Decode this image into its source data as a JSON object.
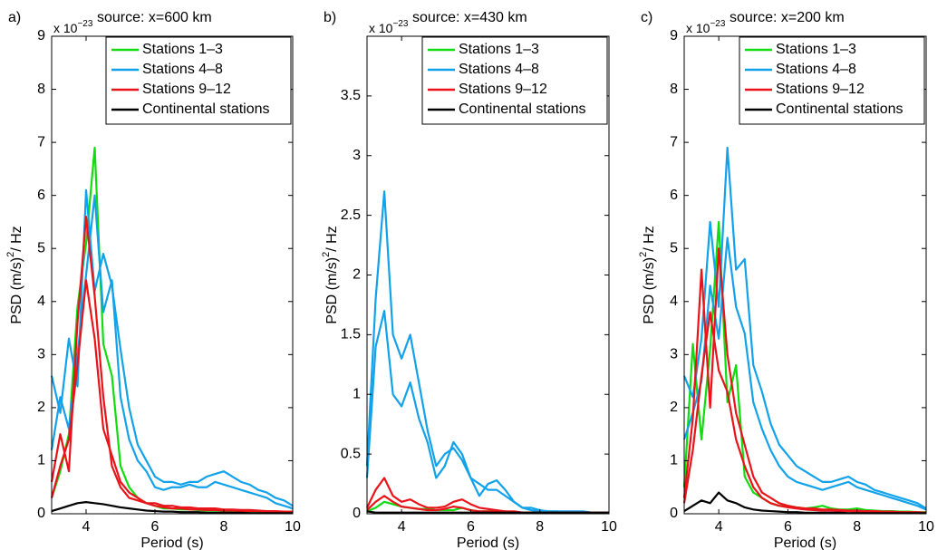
{
  "chart_data": [
    {
      "type": "line",
      "panel_label": "a)",
      "subtitle": "source: x=600 km",
      "scale_label": "x 10",
      "scale_exponent": "−23",
      "xlabel": "Period (s)",
      "ylabel": "PSD (m/s)",
      "ylabel_sup": "2",
      "ylabel_tail": "/ Hz",
      "legend": "upper right",
      "x": [
        3,
        3.25,
        3.5,
        3.75,
        4,
        4.25,
        4.5,
        4.75,
        5,
        5.25,
        5.5,
        5.75,
        6,
        6.25,
        6.5,
        6.75,
        7,
        7.25,
        7.5,
        7.75,
        8,
        8.25,
        8.5,
        8.75,
        9,
        9.25,
        9.5,
        9.75,
        10
      ],
      "xlim": [
        3,
        10
      ],
      "xticks": [
        4,
        6,
        8,
        10
      ],
      "ylim": [
        0,
        9
      ],
      "yticks": [
        0,
        1,
        2,
        3,
        4,
        5,
        6,
        7,
        8,
        9
      ],
      "series": [
        {
          "name": "Stations 1–3",
          "color": "#10dc10",
          "lines": [
            [
              0.3,
              0.8,
              1.5,
              3.9,
              5.1,
              6.9,
              3.2,
              2.6,
              0.9,
              0.5,
              0.3,
              0.2,
              0.15,
              0.1,
              0.1,
              0.08,
              0.08,
              0.07,
              0.06,
              0.06,
              0.05,
              0.05,
              0.04,
              0.04,
              0.03,
              0.03,
              0.03,
              0.02,
              0.02
            ]
          ]
        },
        {
          "name": "Stations 4–8",
          "color": "#12a2ea",
          "lines": [
            [
              2.6,
              1.9,
              3.3,
              2.4,
              6.1,
              4.2,
              4.9,
              4.3,
              3.1,
              2.0,
              1.3,
              1.0,
              0.7,
              0.6,
              0.6,
              0.55,
              0.6,
              0.6,
              0.7,
              0.75,
              0.8,
              0.7,
              0.6,
              0.55,
              0.45,
              0.4,
              0.3,
              0.25,
              0.15
            ],
            [
              1.2,
              2.2,
              1.6,
              3.0,
              4.5,
              6.0,
              3.8,
              4.4,
              2.2,
              1.4,
              1.0,
              0.8,
              0.5,
              0.45,
              0.5,
              0.5,
              0.55,
              0.5,
              0.5,
              0.6,
              0.55,
              0.5,
              0.45,
              0.4,
              0.35,
              0.3,
              0.2,
              0.15,
              0.1
            ]
          ]
        },
        {
          "name": "Stations 9–12",
          "color": "#e8141a",
          "lines": [
            [
              0.6,
              1.5,
              0.8,
              3.6,
              5.6,
              4.1,
              2.2,
              0.9,
              0.5,
              0.3,
              0.25,
              0.2,
              0.15,
              0.12,
              0.1,
              0.1,
              0.08,
              0.08,
              0.07,
              0.07,
              0.06,
              0.06,
              0.05,
              0.05,
              0.05,
              0.04,
              0.04,
              0.03,
              0.03
            ],
            [
              0.3,
              0.9,
              1.4,
              2.8,
              4.4,
              3.3,
              1.6,
              1.1,
              0.6,
              0.4,
              0.3,
              0.2,
              0.2,
              0.15,
              0.15,
              0.12,
              0.12,
              0.1,
              0.1,
              0.1,
              0.08,
              0.08,
              0.07,
              0.07,
              0.06,
              0.05,
              0.05,
              0.04,
              0.04
            ]
          ]
        },
        {
          "name": "Continental stations",
          "color": "#000000",
          "lines": [
            [
              0.05,
              0.1,
              0.15,
              0.2,
              0.22,
              0.2,
              0.18,
              0.15,
              0.12,
              0.1,
              0.08,
              0.06,
              0.05,
              0.04,
              0.04,
              0.03,
              0.03,
              0.03,
              0.02,
              0.02,
              0.02,
              0.02,
              0.02,
              0.01,
              0.01,
              0.01,
              0.01,
              0.01,
              0.01
            ]
          ]
        }
      ]
    },
    {
      "type": "line",
      "panel_label": "b)",
      "subtitle": "source: x=430 km",
      "scale_label": "x 10",
      "scale_exponent": "−23",
      "xlabel": "Period (s)",
      "ylabel": "PSD (m/s)",
      "ylabel_sup": "2",
      "ylabel_tail": "/ Hz",
      "legend": "upper right",
      "x": [
        3,
        3.25,
        3.5,
        3.75,
        4,
        4.25,
        4.5,
        4.75,
        5,
        5.25,
        5.5,
        5.75,
        6,
        6.25,
        6.5,
        6.75,
        7,
        7.25,
        7.5,
        7.75,
        8,
        8.25,
        8.5,
        8.75,
        9,
        9.25,
        9.5,
        9.75,
        10
      ],
      "xlim": [
        3,
        10
      ],
      "xticks": [
        4,
        6,
        8,
        10
      ],
      "ylim": [
        0,
        4
      ],
      "yticks": [
        0,
        0.5,
        1,
        1.5,
        2,
        2.5,
        3,
        3.5
      ],
      "series": [
        {
          "name": "Stations 1–3",
          "color": "#10dc10",
          "lines": [
            [
              0.02,
              0.05,
              0.1,
              0.08,
              0.06,
              0.05,
              0.04,
              0.04,
              0.03,
              0.03,
              0.03,
              0.05,
              0.03,
              0.02,
              0.02,
              0.02,
              0.02,
              0.01,
              0.01,
              0.01,
              0.01,
              0.01,
              0.01,
              0.01,
              0.01,
              0.01,
              0.01,
              0.01,
              0.01
            ]
          ]
        },
        {
          "name": "Stations 4–8",
          "color": "#12a2ea",
          "lines": [
            [
              0.4,
              1.8,
              2.7,
              1.5,
              1.3,
              1.5,
              1.1,
              0.7,
              0.4,
              0.5,
              0.55,
              0.45,
              0.3,
              0.25,
              0.2,
              0.2,
              0.15,
              0.1,
              0.05,
              0.05,
              0.03,
              0.02,
              0.02,
              0.02,
              0.02,
              0.02,
              0.01,
              0.01,
              0.01
            ],
            [
              0.3,
              1.4,
              1.7,
              1.0,
              0.9,
              1.1,
              0.8,
              0.6,
              0.3,
              0.4,
              0.6,
              0.5,
              0.3,
              0.15,
              0.25,
              0.28,
              0.2,
              0.1,
              0.05,
              0.03,
              0.02,
              0.02,
              0.02,
              0.01,
              0.01,
              0.01,
              0.01,
              0.01,
              0.01
            ]
          ]
        },
        {
          "name": "Stations 9–12",
          "color": "#e8141a",
          "lines": [
            [
              0.05,
              0.2,
              0.3,
              0.15,
              0.1,
              0.12,
              0.08,
              0.05,
              0.05,
              0.06,
              0.1,
              0.12,
              0.08,
              0.05,
              0.04,
              0.03,
              0.02,
              0.02,
              0.01,
              0.01,
              0.01,
              0.01,
              0.01,
              0.01,
              0.01,
              0.01,
              0.01,
              0.01,
              0.01
            ],
            [
              0.03,
              0.1,
              0.15,
              0.1,
              0.06,
              0.05,
              0.04,
              0.03,
              0.03,
              0.04,
              0.06,
              0.05,
              0.03,
              0.02,
              0.02,
              0.02,
              0.01,
              0.01,
              0.01,
              0.01,
              0.01,
              0.01,
              0.01,
              0.01,
              0.01,
              0.01,
              0.01,
              0.01,
              0.01
            ]
          ]
        },
        {
          "name": "Continental stations",
          "color": "#000000",
          "lines": [
            [
              0.02,
              0.01,
              0.01,
              0.01,
              0.01,
              0.01,
              0.01,
              0.01,
              0.01,
              0.01,
              0.01,
              0.01,
              0.01,
              0.01,
              0.01,
              0.01,
              0.01,
              0.01,
              0.01,
              0.01,
              0.01,
              0.01,
              0.01,
              0.01,
              0.01,
              0.01,
              0.01,
              0.01,
              0.01
            ]
          ]
        }
      ]
    },
    {
      "type": "line",
      "panel_label": "c)",
      "subtitle": "source: x=200 km",
      "scale_label": "x 10",
      "scale_exponent": "−23",
      "xlabel": "Period (s)",
      "ylabel": "PSD (m/s)",
      "ylabel_sup": "2",
      "ylabel_tail": "/ Hz",
      "legend": "upper right",
      "x": [
        3,
        3.25,
        3.5,
        3.75,
        4,
        4.25,
        4.5,
        4.75,
        5,
        5.25,
        5.5,
        5.75,
        6,
        6.25,
        6.5,
        6.75,
        7,
        7.25,
        7.5,
        7.75,
        8,
        8.25,
        8.5,
        8.75,
        9,
        9.25,
        9.5,
        9.75,
        10
      ],
      "xlim": [
        3,
        10
      ],
      "xticks": [
        4,
        6,
        8,
        10
      ],
      "ylim": [
        0,
        9
      ],
      "yticks": [
        0,
        1,
        2,
        3,
        4,
        5,
        6,
        7,
        8,
        9
      ],
      "series": [
        {
          "name": "Stations 1–3",
          "color": "#10dc10",
          "lines": [
            [
              0.5,
              3.2,
              1.4,
              3.1,
              5.5,
              2.1,
              2.8,
              0.7,
              0.4,
              0.3,
              0.2,
              0.15,
              0.15,
              0.12,
              0.1,
              0.12,
              0.15,
              0.1,
              0.08,
              0.08,
              0.1,
              0.07,
              0.06,
              0.05,
              0.05,
              0.04,
              0.04,
              0.03,
              0.03
            ]
          ]
        },
        {
          "name": "Stations 4–8",
          "color": "#12a2ea",
          "lines": [
            [
              2.6,
              2.2,
              3.3,
              5.5,
              3.9,
              6.9,
              4.6,
              4.8,
              2.8,
              2.3,
              1.7,
              1.3,
              1.1,
              0.9,
              0.8,
              0.7,
              0.6,
              0.6,
              0.65,
              0.7,
              0.6,
              0.55,
              0.45,
              0.4,
              0.35,
              0.3,
              0.25,
              0.2,
              0.1
            ],
            [
              1.4,
              1.9,
              2.5,
              4.3,
              3.3,
              5.2,
              3.9,
              3.4,
              2.1,
              1.6,
              1.2,
              0.9,
              0.7,
              0.6,
              0.55,
              0.5,
              0.45,
              0.5,
              0.55,
              0.6,
              0.5,
              0.45,
              0.4,
              0.35,
              0.3,
              0.25,
              0.2,
              0.15,
              0.08
            ]
          ]
        },
        {
          "name": "Stations 9–12",
          "color": "#e8141a",
          "lines": [
            [
              0.3,
              1.8,
              4.6,
              2.0,
              5.0,
              3.0,
              1.9,
              1.3,
              0.7,
              0.4,
              0.3,
              0.2,
              0.15,
              0.12,
              0.1,
              0.1,
              0.08,
              0.08,
              0.07,
              0.06,
              0.06,
              0.05,
              0.05,
              0.04,
              0.04,
              0.03,
              0.03,
              0.03,
              0.02
            ],
            [
              0.2,
              1.2,
              2.6,
              3.8,
              2.7,
              2.3,
              1.4,
              0.9,
              0.5,
              0.3,
              0.2,
              0.15,
              0.12,
              0.1,
              0.08,
              0.07,
              0.06,
              0.06,
              0.05,
              0.05,
              0.04,
              0.04,
              0.04,
              0.03,
              0.03,
              0.03,
              0.02,
              0.02,
              0.02
            ]
          ]
        },
        {
          "name": "Continental stations",
          "color": "#000000",
          "lines": [
            [
              0.05,
              0.15,
              0.25,
              0.2,
              0.4,
              0.25,
              0.2,
              0.12,
              0.08,
              0.06,
              0.05,
              0.04,
              0.03,
              0.03,
              0.02,
              0.02,
              0.02,
              0.02,
              0.02,
              0.01,
              0.01,
              0.01,
              0.01,
              0.01,
              0.01,
              0.01,
              0.01,
              0.01,
              0.01
            ]
          ]
        }
      ]
    }
  ]
}
